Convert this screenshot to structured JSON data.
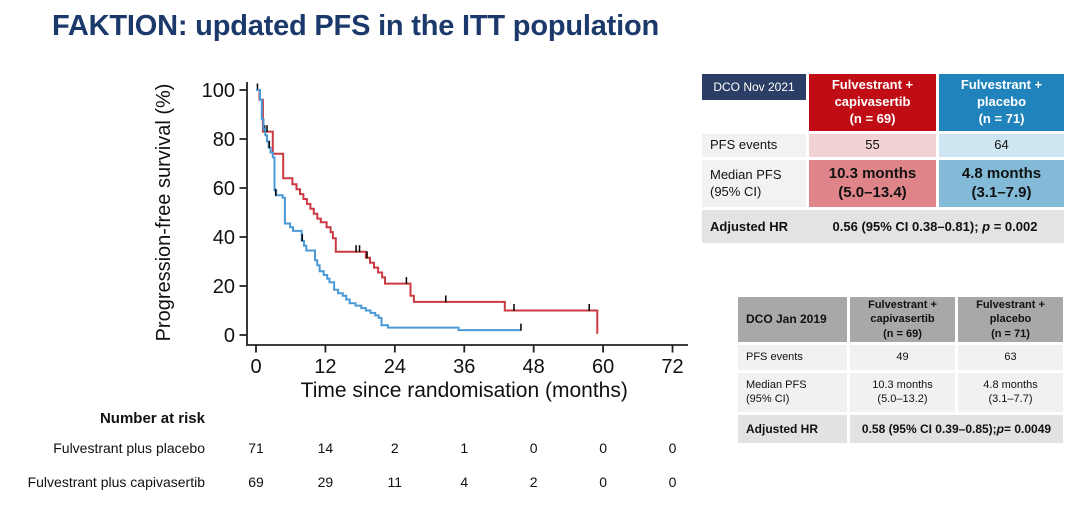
{
  "slide": {
    "title": "FAKTION: updated PFS in the ITT population"
  },
  "chart_data": {
    "type": "line",
    "subtype": "kaplan-meier-step",
    "xlabel": "Time since randomisation (months)",
    "ylabel": "Progression-free survival (%)",
    "xlim": [
      0,
      72
    ],
    "ylim": [
      0,
      100
    ],
    "xticks": [
      0,
      12,
      24,
      36,
      48,
      60,
      72
    ],
    "yticks": [
      0,
      20,
      40,
      60,
      80,
      100
    ],
    "grid": false,
    "legend": "none",
    "series": [
      {
        "name": "Fulvestrant plus capivasertib",
        "color": "#CB3A42",
        "start": [
          0,
          100
        ],
        "drops": [
          [
            0.6,
            96
          ],
          [
            1.2,
            83
          ],
          [
            2.9,
            74
          ],
          [
            4.7,
            64
          ],
          [
            6.3,
            61.5
          ],
          [
            7.0,
            59.5
          ],
          [
            7.6,
            57.5
          ],
          [
            8.2,
            55.5
          ],
          [
            8.8,
            53.5
          ],
          [
            9.4,
            51.5
          ],
          [
            10.0,
            49.5
          ],
          [
            10.6,
            47.5
          ],
          [
            11.2,
            46
          ],
          [
            12.2,
            44
          ],
          [
            12.9,
            42
          ],
          [
            13.3,
            39.5
          ],
          [
            13.8,
            34
          ],
          [
            19.0,
            31.5
          ],
          [
            19.7,
            29.5
          ],
          [
            20.4,
            27.5
          ],
          [
            21.1,
            25.5
          ],
          [
            21.8,
            23.5
          ],
          [
            22.3,
            21
          ],
          [
            26.7,
            16
          ],
          [
            27.3,
            13.5
          ],
          [
            43.0,
            10
          ],
          [
            59.0,
            0.8
          ]
        ],
        "end": 59.1,
        "censors": [
          [
            0.25,
            100
          ],
          [
            1.5,
            83
          ],
          [
            1.9,
            83
          ],
          [
            17.3,
            34
          ],
          [
            17.9,
            34
          ],
          [
            19.2,
            31.5
          ],
          [
            26.0,
            21
          ],
          [
            32.8,
            13.5
          ],
          [
            44.6,
            10
          ],
          [
            57.6,
            10
          ]
        ]
      },
      {
        "name": "Fulvestrant plus placebo",
        "color": "#4A9AD5",
        "start": [
          0,
          100
        ],
        "drops": [
          [
            0.7,
            96
          ],
          [
            1.0,
            88
          ],
          [
            1.3,
            84
          ],
          [
            1.6,
            81.5
          ],
          [
            1.9,
            79
          ],
          [
            2.2,
            76.5
          ],
          [
            2.5,
            74.5
          ],
          [
            2.9,
            72.5
          ],
          [
            3.2,
            59
          ],
          [
            3.5,
            57
          ],
          [
            4.6,
            56
          ],
          [
            5.0,
            45.5
          ],
          [
            5.9,
            44
          ],
          [
            6.4,
            42.5
          ],
          [
            7.9,
            38.5
          ],
          [
            8.3,
            36.5
          ],
          [
            8.7,
            34.5
          ],
          [
            10.2,
            30.5
          ],
          [
            10.6,
            28.5
          ],
          [
            11.0,
            26
          ],
          [
            11.7,
            24.5
          ],
          [
            12.3,
            23
          ],
          [
            12.7,
            21.5
          ],
          [
            13.5,
            18.5
          ],
          [
            14.2,
            17
          ],
          [
            15.0,
            16
          ],
          [
            15.6,
            14.5
          ],
          [
            16.2,
            13
          ],
          [
            17.2,
            12
          ],
          [
            18.2,
            11
          ],
          [
            19.0,
            10
          ],
          [
            19.8,
            9
          ],
          [
            20.6,
            8
          ],
          [
            21.2,
            7
          ],
          [
            21.7,
            4
          ],
          [
            22.8,
            3
          ],
          [
            35.0,
            2
          ]
        ],
        "end": 45.8,
        "censors": [
          [
            2.3,
            76.5
          ],
          [
            3.4,
            57
          ],
          [
            8.0,
            38.5
          ],
          [
            45.8,
            2
          ]
        ]
      }
    ],
    "number_at_risk": {
      "heading": "Number at risk",
      "times": [
        0,
        12,
        24,
        36,
        48,
        60,
        72
      ],
      "rows": [
        {
          "label": "Fulvestrant plus placebo",
          "values": [
            "71",
            "14",
            "2",
            "1",
            "0",
            "0",
            "0"
          ]
        },
        {
          "label": "Fulvestrant plus capivasertib",
          "values": [
            "69",
            "29",
            "11",
            "4",
            "2",
            "0",
            "0"
          ]
        }
      ]
    }
  },
  "table_2021": {
    "tag": "DCO Nov 2021",
    "col_capivasertib": "Fulvestrant +\ncapivasertib\n(n = 69)",
    "col_placebo": "Fulvestrant +\nplacebo\n(n = 71)",
    "rows": {
      "pfs_events": {
        "label": "PFS events",
        "capivasertib": "55",
        "placebo": "64"
      },
      "median_pfs": {
        "label": "Median PFS\n(95% CI)",
        "capivasertib": "10.3 months\n(5.0–13.4)",
        "placebo": "4.8 months\n(3.1–7.9)"
      },
      "adjusted_hr": {
        "label": "Adjusted HR",
        "prefix": "0.56 (95% CI 0.38–0.81); ",
        "p": "p",
        "suffix": " = 0.002"
      }
    }
  },
  "table_2019": {
    "tag": "DCO Jan 2019",
    "col_capivasertib": "Fulvestrant +\ncapivasertib\n(n = 69)",
    "col_placebo": "Fulvestrant +\nplacebo\n(n = 71)",
    "rows": {
      "pfs_events": {
        "label": "PFS events",
        "capivasertib": "49",
        "placebo": "63"
      },
      "median_pfs": {
        "label": "Median PFS\n(95% CI)",
        "capivasertib": "10.3 months\n(5.0–13.2)",
        "placebo": "4.8 months\n(3.1–7.7)"
      },
      "adjusted_hr": {
        "label": "Adjusted HR",
        "prefix": "0.58 (95% CI 0.39–0.85); ",
        "p": "p",
        "suffix": " = 0.0049"
      }
    }
  }
}
